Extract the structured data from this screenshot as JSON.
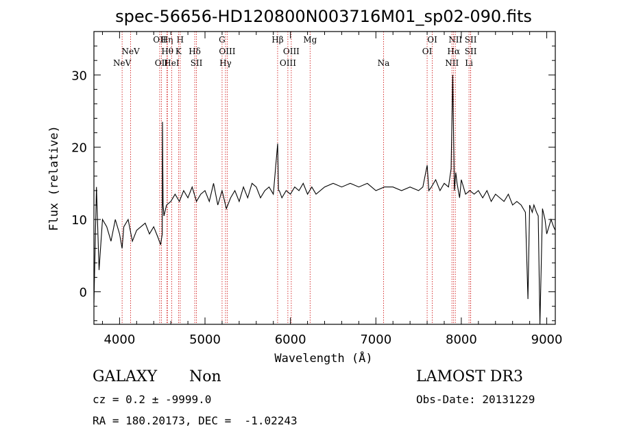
{
  "chart_data": {
    "type": "line",
    "title": "spec-56656-HD120800N003716M01_sp02-090.fits",
    "xlabel": "Wavelength (Å)",
    "ylabel": "Flux (relative)",
    "xlim": [
      3700,
      9100
    ],
    "ylim": [
      -4.5,
      36
    ],
    "xticks": [
      4000,
      5000,
      6000,
      7000,
      8000,
      9000
    ],
    "yticks": [
      0,
      10,
      20,
      30
    ],
    "series": [
      {
        "name": "spectrum",
        "x": [
          3700,
          3730,
          3760,
          3800,
          3850,
          3900,
          3950,
          4000,
          4030,
          4050,
          4100,
          4150,
          4200,
          4250,
          4300,
          4350,
          4400,
          4450,
          4480,
          4500,
          4502,
          4510,
          4520,
          4550,
          4600,
          4650,
          4700,
          4750,
          4800,
          4850,
          4900,
          4950,
          5000,
          5050,
          5100,
          5150,
          5200,
          5250,
          5300,
          5350,
          5400,
          5450,
          5500,
          5550,
          5600,
          5650,
          5700,
          5750,
          5800,
          5850,
          5860,
          5870,
          5900,
          5950,
          6000,
          6050,
          6100,
          6150,
          6200,
          6250,
          6300,
          6400,
          6500,
          6600,
          6700,
          6800,
          6900,
          7000,
          7100,
          7200,
          7300,
          7400,
          7500,
          7550,
          7600,
          7620,
          7650,
          7700,
          7750,
          7800,
          7850,
          7880,
          7900,
          7910,
          7920,
          7935,
          7950,
          7980,
          8000,
          8050,
          8100,
          8150,
          8200,
          8250,
          8300,
          8350,
          8400,
          8450,
          8500,
          8550,
          8600,
          8650,
          8700,
          8750,
          8780,
          8800,
          8830,
          8850,
          8880,
          8900,
          8920,
          8950,
          8980,
          9000,
          9050,
          9080,
          9100
        ],
        "values": [
          -1.5,
          14.5,
          3,
          10,
          9,
          7,
          10,
          8,
          6,
          9,
          10,
          7,
          8.5,
          9,
          9.5,
          8,
          9,
          7.5,
          6.5,
          8,
          23.5,
          12,
          10.5,
          12,
          12.5,
          13.5,
          12.5,
          14,
          13,
          14.5,
          12.5,
          13.5,
          14,
          12.5,
          15,
          12,
          14,
          11.5,
          13,
          14,
          12.5,
          14.5,
          13,
          15,
          14.5,
          13,
          14,
          14.5,
          13.5,
          20.5,
          14,
          14,
          13,
          14,
          13.5,
          14.5,
          14,
          15,
          13.5,
          14.5,
          13.5,
          14.5,
          15,
          14.5,
          15,
          14.5,
          15,
          14,
          14.5,
          14.5,
          14,
          14.5,
          14,
          14.5,
          17.5,
          14,
          14.5,
          15.5,
          14,
          15,
          14.5,
          17,
          30,
          21,
          14,
          16.5,
          15,
          13,
          15.5,
          13.5,
          14,
          13.5,
          14,
          13,
          14,
          12.5,
          13.5,
          13,
          12.5,
          13.5,
          12,
          12.5,
          12,
          11,
          -1,
          12,
          11,
          12,
          11,
          10.5,
          -4.5,
          11.5,
          10,
          8,
          10,
          9,
          8.5
        ]
      }
    ],
    "line_labels": [
      {
        "text": "NeV",
        "wave": 4030,
        "row": 2,
        "line": true
      },
      {
        "text": "NeV",
        "wave": 4130,
        "row": 1,
        "line": true
      },
      {
        "text": "OII",
        "wave": 4470,
        "row": 0,
        "line": true
      },
      {
        "text": "OII",
        "wave": 4490,
        "row": 2,
        "line": true
      },
      {
        "text": "Hη",
        "wave": 4555,
        "row": 0,
        "line": true
      },
      {
        "text": "Hθ",
        "wave": 4560,
        "row": 1,
        "line": true
      },
      {
        "text": "HeI",
        "wave": 4610,
        "row": 2,
        "line": true
      },
      {
        "text": "H",
        "wave": 4710,
        "row": 0,
        "line": true
      },
      {
        "text": "K",
        "wave": 4690,
        "row": 1,
        "line": true
      },
      {
        "text": "Hδ",
        "wave": 4880,
        "row": 1,
        "line": true
      },
      {
        "text": "SII",
        "wave": 4900,
        "row": 2,
        "line": true
      },
      {
        "text": "G",
        "wave": 5200,
        "row": 0,
        "line": true
      },
      {
        "text": "OIII",
        "wave": 5260,
        "row": 1,
        "line": true
      },
      {
        "text": "Hγ",
        "wave": 5240,
        "row": 2,
        "line": true
      },
      {
        "text": "Hβ",
        "wave": 5850,
        "row": 0,
        "line": true
      },
      {
        "text": "OIII",
        "wave": 6010,
        "row": 1,
        "line": true
      },
      {
        "text": "OIII",
        "wave": 5970,
        "row": 2,
        "line": true
      },
      {
        "text": "Mg",
        "wave": 6230,
        "row": 0,
        "line": true
      },
      {
        "text": "Na",
        "wave": 7090,
        "row": 2,
        "line": true
      },
      {
        "text": "OI",
        "wave": 7660,
        "row": 0,
        "line": true
      },
      {
        "text": "OI",
        "wave": 7600,
        "row": 1,
        "line": true
      },
      {
        "text": "NII",
        "wave": 7930,
        "row": 0,
        "line": true
      },
      {
        "text": "Hα",
        "wave": 7910,
        "row": 1,
        "line": true
      },
      {
        "text": "NII",
        "wave": 7890,
        "row": 2,
        "line": true
      },
      {
        "text": "SII",
        "wave": 8110,
        "row": 0,
        "line": true
      },
      {
        "text": "SII",
        "wave": 8110,
        "row": 1,
        "line": true
      },
      {
        "text": "Li",
        "wave": 8090,
        "row": 2,
        "line": true
      }
    ]
  },
  "info": {
    "class": "GALAXY",
    "subclass": "Non",
    "survey": "LAMOST DR3",
    "cz": "cz = 0.2 ± -9999.0",
    "obs_date": "Obs-Date: 20131229",
    "coords": "RA = 180.20173, DEC =  -1.02243"
  },
  "colors": {
    "spectrum": "#000000",
    "line_marker": "#cc0000",
    "axis": "#000000"
  }
}
